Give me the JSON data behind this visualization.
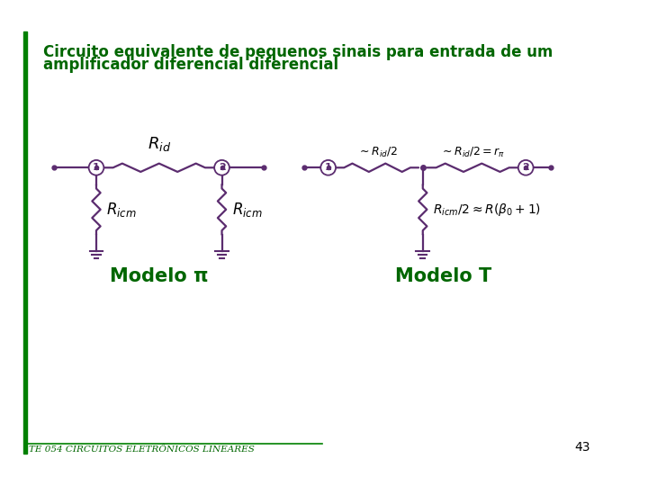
{
  "title_line1": "Circuito equivalente de pequenos sinais para entrada de um",
  "title_line2": "amplificador diferencial diferencial",
  "title_color": "#006600",
  "title_fontsize": 12,
  "circuit_color": "#5B2C6F",
  "bg_color": "#FFFFFF",
  "footer_text": "TE 054 CIRCUITOS ELETRÔNICOS LINEARES",
  "footer_color": "#006600",
  "page_number": "43",
  "modelo_pi_label": "Modelo π",
  "modelo_t_label": "Modelo T",
  "label_color": "#006600",
  "label_fontsize": 15
}
